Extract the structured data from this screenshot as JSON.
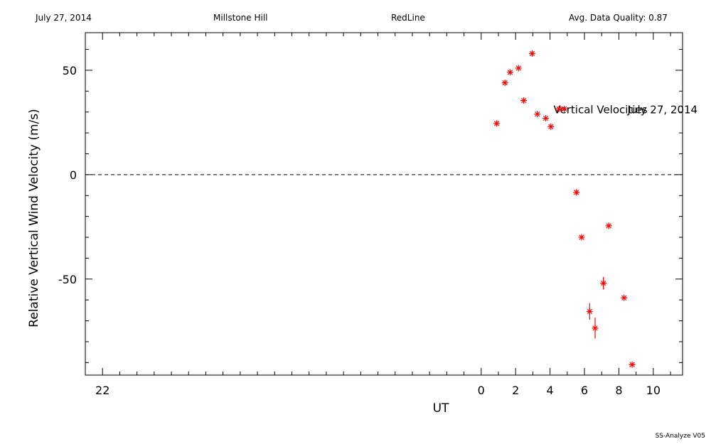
{
  "header": {
    "date": "July 27, 2014",
    "site": "Millstone Hill",
    "filter": "RedLine",
    "quality": "Avg. Data Quality: 0.87"
  },
  "footer": {
    "version": "SS-Analyze V05"
  },
  "colors": {
    "points": "#ff0000",
    "axes": "#000000"
  },
  "chart_data": {
    "type": "scatter",
    "xlabel": "UT",
    "ylabel": "Relative Vertical Wind Velocity (m/s)",
    "xlim": [
      -23,
      11.7
    ],
    "ylim": [
      -96,
      68
    ],
    "xticks": [
      {
        "value": -22,
        "label": "22"
      },
      {
        "value": 0,
        "label": "0"
      },
      {
        "value": 2,
        "label": "2"
      },
      {
        "value": 4,
        "label": "4"
      },
      {
        "value": 6,
        "label": "6"
      },
      {
        "value": 8,
        "label": "8"
      },
      {
        "value": 10,
        "label": "10"
      }
    ],
    "yticks": [
      {
        "value": -50,
        "label": "-50"
      },
      {
        "value": 0,
        "label": "0"
      },
      {
        "value": 50,
        "label": "50"
      }
    ],
    "annotations": [
      {
        "text": "Vertical Velocities",
        "x": 4.2,
        "y": 31.5
      },
      {
        "text": "July 27, 2014",
        "x": 8.5,
        "y": 31.5
      }
    ],
    "reference_line": {
      "y": 0,
      "style": "dashed"
    },
    "points": [
      {
        "x": 0.9,
        "y": 24.5,
        "err": 0
      },
      {
        "x": 1.38,
        "y": 44,
        "err": 0
      },
      {
        "x": 1.68,
        "y": 49,
        "err": 0
      },
      {
        "x": 2.17,
        "y": 51,
        "err": 0
      },
      {
        "x": 2.47,
        "y": 35.5,
        "err": 0
      },
      {
        "x": 2.96,
        "y": 58,
        "err": 0
      },
      {
        "x": 3.26,
        "y": 29,
        "err": 0
      },
      {
        "x": 3.75,
        "y": 27,
        "err": 0
      },
      {
        "x": 4.05,
        "y": 23,
        "err": 0
      },
      {
        "x": 4.52,
        "y": 31.5,
        "err": 0
      },
      {
        "x": 4.83,
        "y": 31.5,
        "err": 0
      },
      {
        "x": 5.53,
        "y": -8.5,
        "err": 0
      },
      {
        "x": 5.83,
        "y": -30,
        "err": 0
      },
      {
        "x": 6.3,
        "y": -65.5,
        "err": 4
      },
      {
        "x": 6.62,
        "y": -73.5,
        "err": 5
      },
      {
        "x": 7.1,
        "y": -52,
        "err": 3
      },
      {
        "x": 7.41,
        "y": -24.5,
        "err": 0
      },
      {
        "x": 8.3,
        "y": -59,
        "err": 0
      },
      {
        "x": 8.77,
        "y": -91,
        "err": 0
      }
    ]
  }
}
